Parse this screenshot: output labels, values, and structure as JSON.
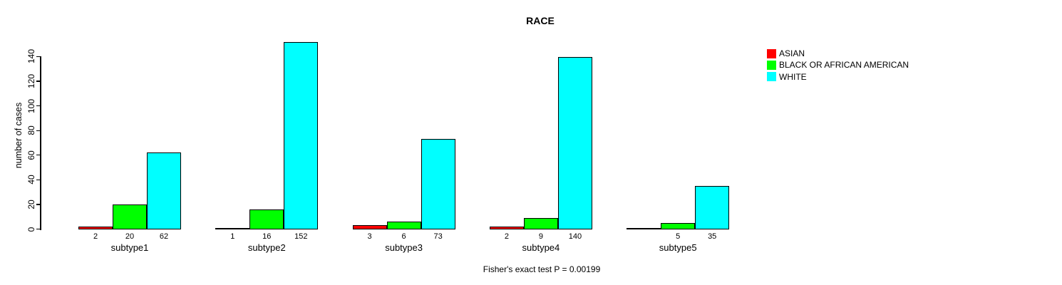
{
  "chart_data": {
    "type": "bar",
    "title": "RACE",
    "ylabel": "number of cases",
    "footer": "Fisher's exact test P = 0.00199",
    "categories": [
      "subtype1",
      "subtype2",
      "subtype3",
      "subtype4",
      "subtype5"
    ],
    "series": [
      {
        "name": "ASIAN",
        "color": "#ff0000",
        "values": [
          2,
          1,
          3,
          2,
          0
        ],
        "labels": [
          "2",
          "1",
          "3",
          "2",
          ""
        ]
      },
      {
        "name": "BLACK OR AFRICAN AMERICAN",
        "color": "#00ff00",
        "values": [
          20,
          16,
          6,
          9,
          5
        ],
        "labels": [
          "20",
          "16",
          "6",
          "9",
          "5"
        ]
      },
      {
        "name": "WHITE",
        "color": "#00ffff",
        "values": [
          62,
          152,
          73,
          140,
          35
        ],
        "labels": [
          "62",
          "152",
          "73",
          "140",
          "35"
        ]
      }
    ],
    "y_ticks": [
      0,
      20,
      40,
      60,
      80,
      100,
      120,
      140
    ],
    "ylim": [
      0,
      152
    ],
    "grid": false,
    "legend_position": "top-right",
    "axis_color": "#000000",
    "bar_border_color": "#000000",
    "background": "#ffffff"
  }
}
